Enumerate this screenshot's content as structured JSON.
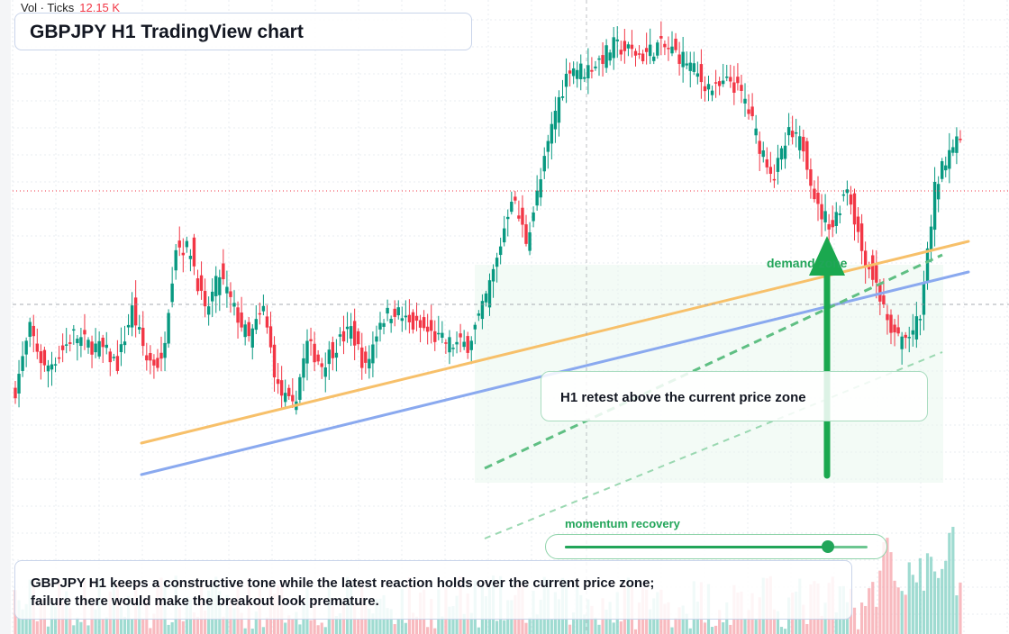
{
  "header": {
    "volume_label": "Vol · Ticks",
    "volume_value": "12.15 K",
    "title": "GBPJPY H1 TradingView chart"
  },
  "annotations": {
    "callout": "H1 retest above the current price zone",
    "demand_zone": "demand zone",
    "momentum_label": "momentum recovery",
    "momentum_level": 0.87,
    "summary": "GBPJPY H1 keeps a constructive tone while the latest reaction holds over the current price zone; failure there would make the breakout look premature."
  },
  "colors": {
    "up": "#089981",
    "down": "#f23645",
    "accent_green": "#22a559",
    "orange_trend": "#f7c06a",
    "blue_trend": "#8aa9ef"
  },
  "chart_data": {
    "type": "candlestick",
    "title": "GBPJPY H1 TradingView chart",
    "timeframe": "H1",
    "legend": "top-left",
    "grid": true,
    "ylim": [
      0,
      100
    ],
    "anchors": [
      {
        "i": 0,
        "c": 24
      },
      {
        "i": 4,
        "c": 36
      },
      {
        "i": 8,
        "c": 28
      },
      {
        "i": 12,
        "c": 31
      },
      {
        "i": 16,
        "c": 35
      },
      {
        "i": 20,
        "c": 33
      },
      {
        "i": 24,
        "c": 32
      },
      {
        "i": 28,
        "c": 29
      },
      {
        "i": 32,
        "c": 40
      },
      {
        "i": 36,
        "c": 30
      },
      {
        "i": 40,
        "c": 29
      },
      {
        "i": 44,
        "c": 53
      },
      {
        "i": 48,
        "c": 52
      },
      {
        "i": 52,
        "c": 39
      },
      {
        "i": 56,
        "c": 47
      },
      {
        "i": 60,
        "c": 40
      },
      {
        "i": 64,
        "c": 34
      },
      {
        "i": 68,
        "c": 40
      },
      {
        "i": 72,
        "c": 24
      },
      {
        "i": 76,
        "c": 20
      },
      {
        "i": 80,
        "c": 33
      },
      {
        "i": 84,
        "c": 29
      },
      {
        "i": 88,
        "c": 33
      },
      {
        "i": 92,
        "c": 36
      },
      {
        "i": 96,
        "c": 28
      },
      {
        "i": 100,
        "c": 38
      },
      {
        "i": 104,
        "c": 40
      },
      {
        "i": 108,
        "c": 37
      },
      {
        "i": 112,
        "c": 36
      },
      {
        "i": 116,
        "c": 34
      },
      {
        "i": 120,
        "c": 33
      },
      {
        "i": 124,
        "c": 33
      },
      {
        "i": 128,
        "c": 40
      },
      {
        "i": 132,
        "c": 50
      },
      {
        "i": 136,
        "c": 63
      },
      {
        "i": 140,
        "c": 54
      },
      {
        "i": 144,
        "c": 66
      },
      {
        "i": 148,
        "c": 80
      },
      {
        "i": 152,
        "c": 89
      },
      {
        "i": 156,
        "c": 88
      },
      {
        "i": 160,
        "c": 90
      },
      {
        "i": 164,
        "c": 93
      },
      {
        "i": 168,
        "c": 92
      },
      {
        "i": 172,
        "c": 91
      },
      {
        "i": 176,
        "c": 93
      },
      {
        "i": 180,
        "c": 92
      },
      {
        "i": 184,
        "c": 90
      },
      {
        "i": 188,
        "c": 86
      },
      {
        "i": 192,
        "c": 84
      },
      {
        "i": 196,
        "c": 86
      },
      {
        "i": 200,
        "c": 82
      },
      {
        "i": 204,
        "c": 73
      },
      {
        "i": 208,
        "c": 67
      },
      {
        "i": 212,
        "c": 75
      },
      {
        "i": 216,
        "c": 73
      },
      {
        "i": 220,
        "c": 60
      },
      {
        "i": 224,
        "c": 57
      },
      {
        "i": 228,
        "c": 65
      },
      {
        "i": 232,
        "c": 52
      },
      {
        "i": 236,
        "c": 45
      },
      {
        "i": 240,
        "c": 35
      },
      {
        "i": 244,
        "c": 34
      },
      {
        "i": 248,
        "c": 38
      },
      {
        "i": 252,
        "c": 64
      },
      {
        "i": 256,
        "c": 73
      },
      {
        "i": 259,
        "c": 73
      }
    ]
  }
}
